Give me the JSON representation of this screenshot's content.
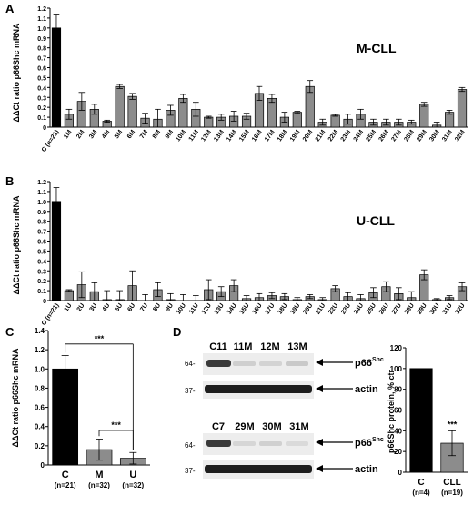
{
  "chart_data": [
    {
      "panel": "A",
      "type": "bar",
      "ylabel": "ΔΔCt ratio p66Shc mRNA",
      "ylim": [
        0,
        1.2
      ],
      "yticks": [
        "0",
        "0.1",
        "0.2",
        "0.3",
        "0.4",
        "0.5",
        "0.6",
        "0.7",
        "0.8",
        "0.9",
        "1.0",
        "1.1",
        "1.2"
      ],
      "annotation": "M-CLL",
      "categories": [
        "C (n=21)",
        "1M",
        "2M",
        "3M",
        "4M",
        "5M",
        "6M",
        "7M",
        "8M",
        "9M",
        "10M",
        "11M",
        "12M",
        "13M",
        "14M",
        "15M",
        "16M",
        "17M",
        "18M",
        "19M",
        "20M",
        "21M",
        "22M",
        "23M",
        "24M",
        "25M",
        "26M",
        "27M",
        "28M",
        "29M",
        "30M",
        "31M",
        "32M"
      ],
      "values": [
        1.0,
        0.13,
        0.26,
        0.18,
        0.06,
        0.41,
        0.31,
        0.09,
        0.08,
        0.17,
        0.29,
        0.18,
        0.1,
        0.1,
        0.11,
        0.11,
        0.34,
        0.29,
        0.1,
        0.15,
        0.41,
        0.05,
        0.12,
        0.08,
        0.13,
        0.05,
        0.05,
        0.05,
        0.05,
        0.23,
        0.02,
        0.15,
        0.38
      ],
      "errors": [
        0.14,
        0.05,
        0.09,
        0.05,
        0.01,
        0.02,
        0.03,
        0.05,
        0.1,
        0.05,
        0.04,
        0.07,
        0.01,
        0.03,
        0.05,
        0.03,
        0.07,
        0.04,
        0.05,
        0.01,
        0.06,
        0.03,
        0.01,
        0.05,
        0.05,
        0.03,
        0.03,
        0.03,
        0.02,
        0.02,
        0.03,
        0.02,
        0.02
      ],
      "colors": [
        "#000000"
      ]
    },
    {
      "panel": "B",
      "type": "bar",
      "ylabel": "ΔΔCt ratio p66Shc mRNA",
      "ylim": [
        0,
        1.2
      ],
      "yticks": [
        "0",
        "0.1",
        "0.2",
        "0.3",
        "0.4",
        "0.5",
        "0.6",
        "0.7",
        "0.8",
        "0.9",
        "1.0",
        "1.1",
        "1.2"
      ],
      "annotation": "U-CLL",
      "categories": [
        "C (n=21)",
        "1U",
        "2U",
        "3U",
        "4U",
        "5U",
        "6U",
        "7U",
        "8U",
        "9U",
        "10U",
        "11U",
        "12U",
        "13U",
        "14U",
        "15U",
        "16U",
        "17U",
        "18U",
        "19U",
        "20U",
        "21U",
        "22U",
        "23U",
        "24U",
        "25U",
        "26U",
        "27U",
        "28U",
        "29U",
        "30U",
        "31U",
        "32U"
      ],
      "values": [
        1.0,
        0.1,
        0.16,
        0.09,
        0.01,
        0.01,
        0.15,
        0.0,
        0.11,
        0.01,
        0.0,
        0.0,
        0.11,
        0.09,
        0.15,
        0.02,
        0.03,
        0.05,
        0.04,
        0.01,
        0.04,
        0.01,
        0.12,
        0.04,
        0.02,
        0.08,
        0.14,
        0.07,
        0.03,
        0.26,
        0.01,
        0.03,
        0.14
      ],
      "errors": [
        0.14,
        0.01,
        0.13,
        0.09,
        0.09,
        0.09,
        0.15,
        0.06,
        0.07,
        0.06,
        0.06,
        0.05,
        0.1,
        0.05,
        0.06,
        0.03,
        0.04,
        0.03,
        0.03,
        0.02,
        0.02,
        0.02,
        0.03,
        0.04,
        0.04,
        0.05,
        0.05,
        0.06,
        0.06,
        0.05,
        0.01,
        0.02,
        0.04
      ],
      "colors": [
        "#000000"
      ]
    },
    {
      "panel": "C",
      "type": "bar",
      "ylabel": "ΔΔCt ratio p66Shc mRNA",
      "ylim": [
        0,
        1.4
      ],
      "yticks": [
        "0",
        "0.2",
        "0.4",
        "0.6",
        "0.8",
        "1.0",
        "1.2",
        "1.4"
      ],
      "categories": [
        "C",
        "M",
        "U"
      ],
      "sublabels": [
        "(n=21)",
        "(n=32)",
        "(n=32)"
      ],
      "values": [
        1.0,
        0.16,
        0.07
      ],
      "errors": [
        0.14,
        0.11,
        0.06
      ],
      "significance": [
        "***",
        "***"
      ]
    },
    {
      "panel": "D-quant",
      "type": "bar",
      "ylabel": "p66Shc protein, % ctr",
      "ylim": [
        0,
        120
      ],
      "yticks": [
        "0",
        "20",
        "40",
        "60",
        "80",
        "100",
        "120"
      ],
      "categories": [
        "C",
        "CLL"
      ],
      "sublabels": [
        "(n=4)",
        "(n=19)"
      ],
      "values": [
        100,
        28
      ],
      "errors": [
        0,
        12
      ],
      "significance": [
        "***"
      ]
    }
  ],
  "panels": {
    "a": "A",
    "b": "B",
    "c": "C",
    "d": "D"
  },
  "blot": {
    "top_lanes": [
      "C11",
      "11M",
      "12M",
      "13M"
    ],
    "bottom_lanes": [
      "C7",
      "29M",
      "30M",
      "31M"
    ],
    "band_target": "p66",
    "band_target_sup": "Shc",
    "band_loading": "actin",
    "mw_upper": "64-",
    "mw_lower": "37-"
  }
}
